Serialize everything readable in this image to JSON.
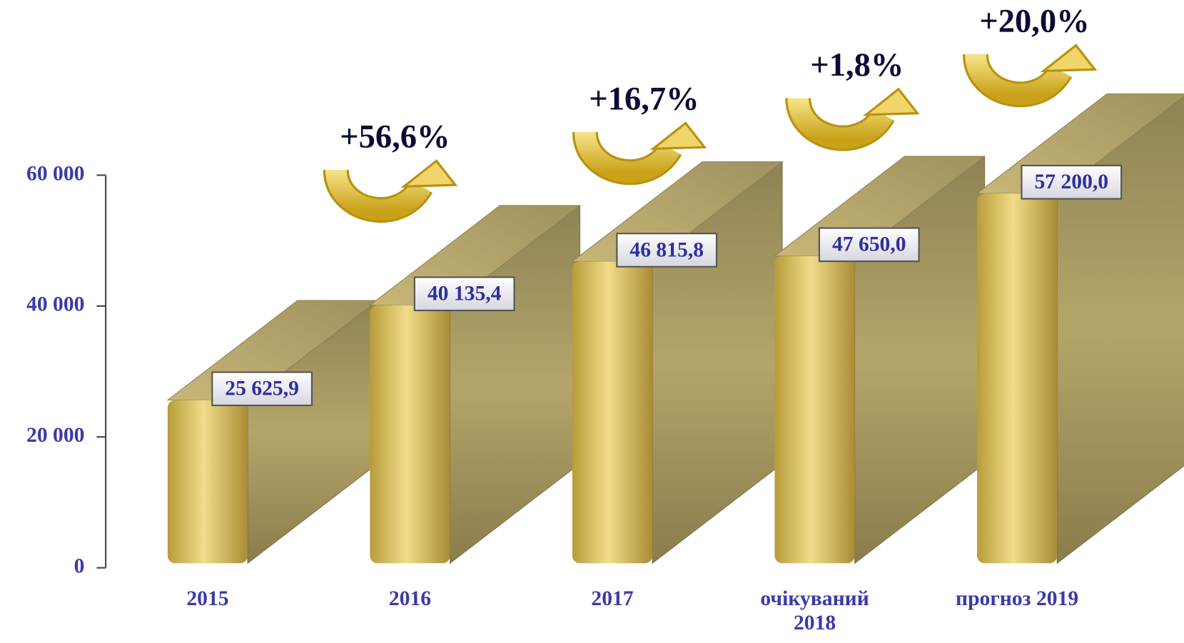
{
  "chart_data": {
    "type": "bar3d",
    "categories": [
      "2015",
      "2016",
      "2017",
      "очікуваний\n2018",
      "прогноз 2019"
    ],
    "values": [
      25625.9,
      40135.4,
      46815.8,
      47650.0,
      57200.0
    ],
    "value_labels": [
      "25 625,9",
      "40 135,4",
      "46 815,8",
      "47 650,0",
      "57 200,0"
    ],
    "annotations": [
      "+56,6%",
      "+16,7%",
      "+1,8%",
      "+20,0%"
    ],
    "ylim": [
      0,
      60000
    ],
    "yticks": [
      0,
      {
        "value": 20000,
        "label": "20 000"
      },
      {
        "value": 40000,
        "label": "40 000"
      },
      {
        "value": 60000,
        "label": "60 000"
      }
    ],
    "color": "#c9b25a"
  }
}
